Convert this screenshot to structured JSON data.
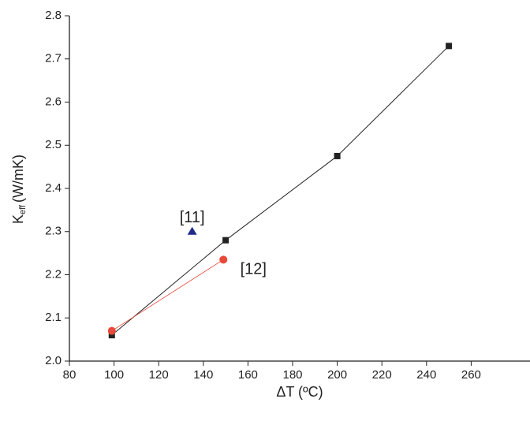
{
  "chart_data": {
    "type": "scatter",
    "xlabel": "ΔT (ºC)",
    "ylabel": "K",
    "ylabel_sub": "eff",
    "ylabel_unit": "(W/mK)",
    "xlim": [
      80,
      280
    ],
    "ylim": [
      2.0,
      2.8
    ],
    "xticks": [
      80,
      100,
      120,
      140,
      160,
      180,
      200,
      220,
      240,
      260
    ],
    "yticks": [
      {
        "value": 2.0,
        "label": "2.0"
      },
      2.1,
      2.2,
      2.3,
      2.4,
      2.5,
      2.6,
      2.7,
      2.8
    ],
    "series": [
      {
        "color": "#222222",
        "marker": "square",
        "line": true,
        "x": [
          99,
          150,
          200,
          250
        ],
        "values": [
          2.06,
          2.28,
          2.475,
          2.73
        ]
      },
      {
        "name": "[12]",
        "color": "#e8493a",
        "marker": "circle",
        "line": true,
        "x": [
          99,
          149
        ],
        "values": [
          2.07,
          2.235
        ]
      },
      {
        "name": "[11]",
        "color": "#1f2a8a",
        "marker": "triangle",
        "line": false,
        "x": [
          135
        ],
        "values": [
          2.3
        ]
      }
    ]
  }
}
